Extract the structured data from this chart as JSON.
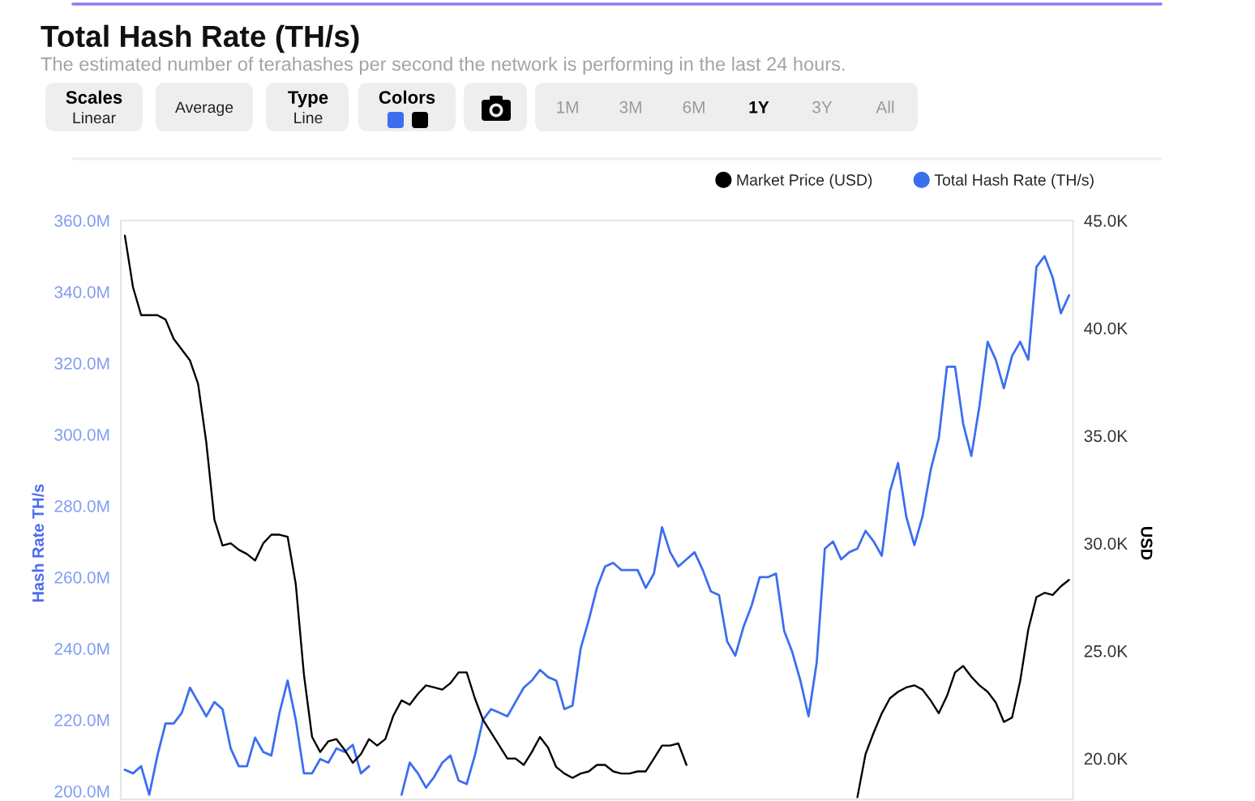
{
  "chart_data": {
    "type": "line",
    "title": "Total Hash Rate (TH/s)",
    "subtitle": "The estimated number of terahashes per second the network is performing in the last 24 hours.",
    "ylabel": "Hash Rate TH/s",
    "y2label": "USD",
    "annotations": [
      "Scales",
      "Linear",
      "Average",
      "Type",
      "Line",
      "Colors",
      "1M",
      "3M",
      "6M",
      "1Y",
      "3Y",
      "All"
    ],
    "legend": "top right",
    "categories": [
      null,
      null,
      null,
      null,
      null,
      null,
      null,
      null,
      null,
      null,
      null,
      null,
      null,
      null,
      null,
      null,
      null,
      null,
      null,
      null,
      null,
      null,
      null,
      null,
      null,
      null,
      null,
      null,
      null,
      null,
      null,
      null,
      null,
      null,
      null,
      null,
      null,
      null,
      null,
      null,
      null,
      null,
      null,
      null,
      null,
      null,
      null,
      null,
      null,
      null,
      null,
      null,
      null,
      null,
      null,
      null,
      null,
      null,
      null,
      null,
      null,
      null,
      null,
      null,
      null,
      null,
      null,
      null,
      null,
      null,
      null,
      null,
      null,
      null,
      null,
      null,
      null,
      null,
      null,
      null,
      null,
      null,
      null,
      null,
      null,
      null,
      null,
      null,
      null,
      null,
      null,
      null,
      null,
      null,
      null,
      null,
      null,
      null,
      null,
      null,
      null,
      null,
      null,
      null,
      null,
      null,
      null,
      null,
      null,
      null,
      null,
      null,
      null,
      null,
      null,
      null,
      null
    ],
    "series": [
      {
        "name": "Market Price (USD)",
        "color": "#000000",
        "axis": "y2",
        "values": [
          44.3,
          41.9,
          40.6,
          40.6,
          40.6,
          40.4,
          39.5,
          39.0,
          38.5,
          37.4,
          34.7,
          31.1,
          29.9,
          30.0,
          29.7,
          29.5,
          29.2,
          30.0,
          30.4,
          30.4,
          30.3,
          28.1,
          23.9,
          21.0,
          20.3,
          20.8,
          20.9,
          20.4,
          19.8,
          20.2,
          20.9,
          20.6,
          20.9,
          22.0,
          22.7,
          22.5,
          23.0,
          23.4,
          23.3,
          23.2,
          23.5,
          24.0,
          24.0,
          22.8,
          21.8,
          21.2,
          20.6,
          20.0,
          20.0,
          19.7,
          20.3,
          21.0,
          20.5,
          19.6,
          19.3,
          19.1,
          19.3,
          19.4,
          19.7,
          19.7,
          19.4,
          19.3,
          19.3,
          19.4,
          19.4,
          20.0,
          20.6,
          20.6,
          20.7,
          19.7,
          null,
          null,
          null,
          null,
          null,
          null,
          null,
          null,
          null,
          null,
          null,
          null,
          null,
          null,
          null,
          null,
          null,
          null,
          null,
          null,
          null,
          null,
          null,
          null,
          null,
          null,
          null,
          null,
          null,
          null,
          null,
          null,
          null,
          null,
          null,
          null,
          null,
          null,
          null,
          null,
          null,
          null,
          null,
          null,
          null,
          null,
          null
        ]
      },
      {
        "color": "#000000",
        "axis": "y2",
        "values": [
          null,
          null,
          null,
          null,
          null,
          null,
          null,
          null,
          null,
          null,
          null,
          null,
          null,
          null,
          null,
          null,
          null,
          null,
          null,
          null,
          null,
          null,
          null,
          null,
          null,
          null,
          null,
          null,
          null,
          null,
          null,
          null,
          null,
          null,
          null,
          null,
          null,
          null,
          null,
          null,
          null,
          null,
          null,
          null,
          null,
          null,
          null,
          null,
          null,
          null,
          null,
          null,
          null,
          null,
          null,
          null,
          null,
          null,
          null,
          null,
          null,
          null,
          null,
          null,
          null,
          null,
          null,
          null,
          null,
          null,
          null,
          null,
          null,
          null,
          null,
          null,
          null,
          null,
          null,
          null,
          null,
          null,
          null,
          null,
          null,
          null,
          null,
          null,
          null,
          null,
          18.2,
          20.2,
          21.2,
          22.1,
          22.8,
          23.1,
          23.3,
          23.4,
          23.2,
          22.7,
          22.1,
          22.9,
          24.0,
          24.3,
          23.8,
          23.4,
          23.1,
          22.6,
          21.7,
          21.9,
          23.6,
          26.0,
          27.5,
          27.7,
          27.6,
          28.0,
          28.3
        ]
      },
      {
        "name": "Total Hash Rate (TH/s)",
        "color": "#3d6ef0",
        "axis": "y",
        "values": [
          206,
          205,
          207,
          199,
          210,
          219,
          219,
          222,
          229,
          225,
          221,
          225,
          223,
          212,
          207,
          207,
          215,
          211,
          210,
          222,
          231,
          220,
          205,
          205,
          209,
          208,
          212,
          211,
          213,
          205,
          207,
          null,
          null,
          null,
          null,
          null,
          null,
          null,
          null,
          null,
          null,
          null,
          null,
          null,
          null,
          null,
          null,
          null,
          null,
          null,
          null,
          null,
          null,
          null,
          null,
          null,
          null,
          null,
          null,
          null,
          null,
          null,
          null,
          null,
          null,
          null,
          null,
          null,
          null,
          null,
          null,
          null,
          null,
          null,
          null,
          null,
          null,
          null,
          null,
          null,
          null,
          null,
          null,
          null,
          null,
          null,
          null,
          null,
          null,
          null,
          null,
          null,
          null,
          null,
          null,
          null,
          null,
          null,
          null,
          null,
          null,
          null,
          null,
          null,
          null,
          null,
          null,
          null,
          null,
          null,
          null,
          null,
          null,
          null,
          null,
          null,
          null
        ]
      },
      {
        "color": "#3d6ef0",
        "axis": "y",
        "values": [
          null,
          null,
          null,
          null,
          null,
          null,
          null,
          null,
          null,
          null,
          null,
          null,
          null,
          null,
          null,
          null,
          null,
          null,
          null,
          null,
          null,
          null,
          null,
          null,
          null,
          null,
          null,
          null,
          null,
          null,
          null,
          null,
          null,
          null,
          199,
          208,
          205,
          201,
          204,
          208,
          210,
          203,
          202,
          210,
          220,
          223,
          222,
          221,
          225,
          229,
          231,
          234,
          232,
          231,
          223,
          224,
          240,
          248,
          257,
          263,
          264,
          262,
          262,
          262,
          257,
          261,
          274,
          267,
          263,
          265,
          267,
          262,
          256,
          255,
          242,
          238,
          246,
          252,
          260,
          260,
          261,
          245,
          239,
          231,
          221,
          236,
          268,
          270,
          265,
          267,
          268,
          273,
          270,
          266,
          284,
          292,
          277,
          269,
          277,
          290,
          299,
          319,
          319,
          303,
          294,
          308,
          326,
          321,
          313,
          322,
          326,
          321,
          347,
          350,
          344,
          334,
          339
        ]
      }
    ],
    "ylim": [
      197.7,
      360
    ],
    "yticks": [
      {
        "value": 200,
        "label": "200.0M"
      },
      {
        "value": 220,
        "label": "220.0M"
      },
      {
        "value": 240,
        "label": "240.0M"
      },
      {
        "value": 260,
        "label": "260.0M"
      },
      {
        "value": 280,
        "label": "280.0M"
      },
      {
        "value": 300,
        "label": "300.0M"
      },
      {
        "value": 320,
        "label": "320.0M"
      },
      {
        "value": 340,
        "label": "340.0M"
      },
      {
        "value": 360,
        "label": "360.0M"
      }
    ],
    "y2lim": [
      18.1,
      45
    ],
    "y2ticks": [
      {
        "value": 20,
        "label": "20.0K"
      },
      {
        "value": 25,
        "label": "25.0K"
      },
      {
        "value": 30,
        "label": "30.0K"
      },
      {
        "value": 35,
        "label": "35.0K"
      },
      {
        "value": 40,
        "label": "40.0K"
      },
      {
        "value": 45,
        "label": "45.0K"
      }
    ]
  }
}
